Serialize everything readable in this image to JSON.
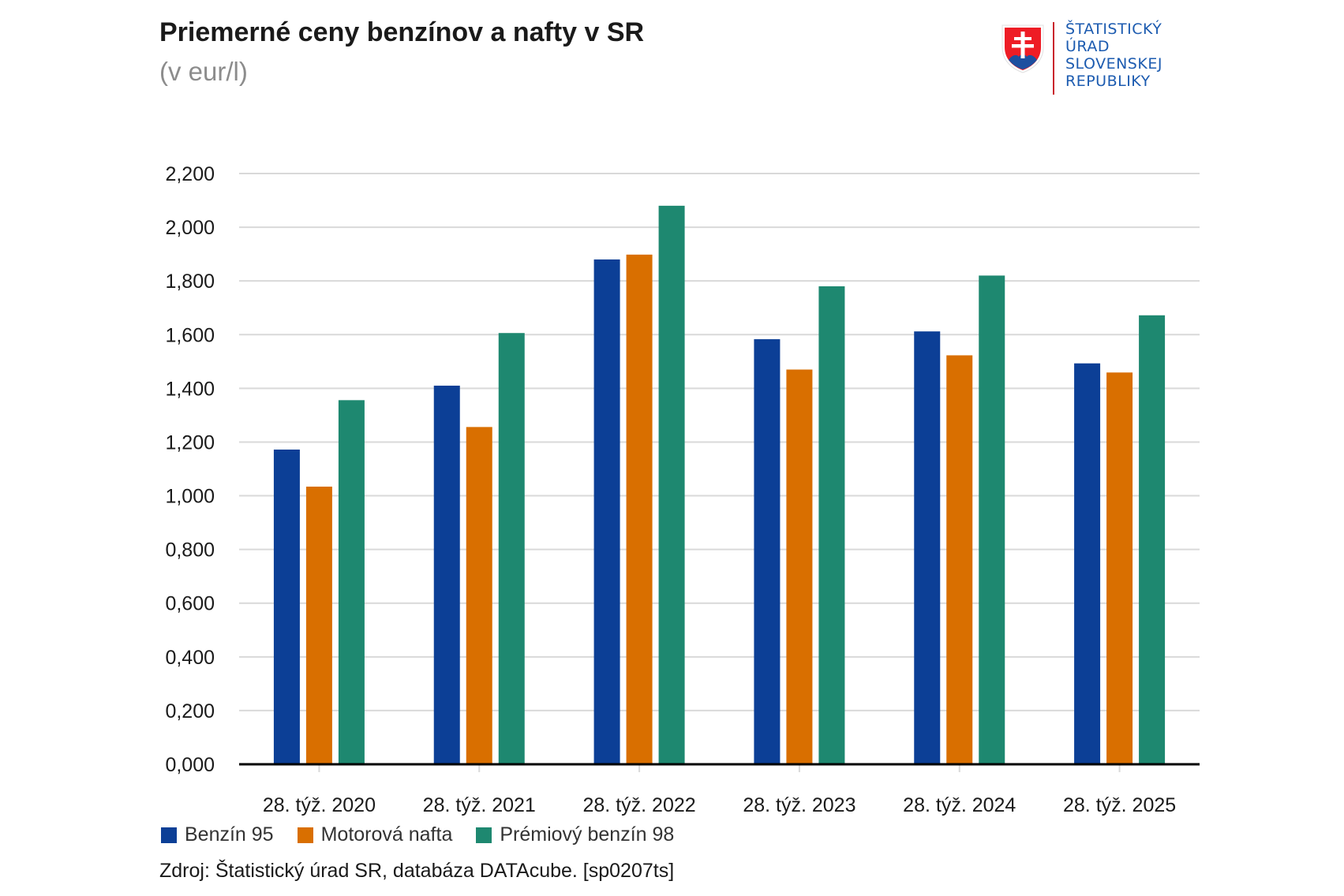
{
  "header": {
    "title": "Priemerné ceny benzínov a nafty v SR",
    "subtitle": "(v eur/l)"
  },
  "logo": {
    "lines": [
      "ŠTATISTICKÝ",
      "ÚRAD",
      "SLOVENSKEJ",
      "REPUBLIKY"
    ],
    "icon": "slovak-coat-of-arms-icon"
  },
  "source": "Zdroj: Štatistický úrad SR, databáza DATAcube. [sp0207ts]",
  "chart_data": {
    "type": "bar",
    "title": "Priemerné ceny benzínov a nafty v SR",
    "subtitle": "(v eur/l)",
    "xlabel": "",
    "ylabel": "",
    "ylim": [
      0,
      2.2
    ],
    "yticks": [
      "0,000",
      "0,200",
      "0,400",
      "0,600",
      "0,800",
      "1,000",
      "1,200",
      "1,400",
      "1,600",
      "1,800",
      "2,000",
      "2,200"
    ],
    "ytick_values": [
      0,
      0.2,
      0.4,
      0.6,
      0.8,
      1.0,
      1.2,
      1.4,
      1.6,
      1.8,
      2.0,
      2.2
    ],
    "grid": true,
    "legend_position": "bottom-left",
    "categories": [
      "28. týž. 2020",
      "28. týž. 2021",
      "28. týž. 2022",
      "28. týž. 2023",
      "28. týž. 2024",
      "28. týž. 2025"
    ],
    "series": [
      {
        "name": "Benzín 95",
        "color": "#0c3f96",
        "values": [
          1.172,
          1.41,
          1.88,
          1.583,
          1.612,
          1.493
        ]
      },
      {
        "name": "Motorová nafta",
        "color": "#d96f00",
        "values": [
          1.034,
          1.256,
          1.898,
          1.47,
          1.523,
          1.459
        ]
      },
      {
        "name": "Prémiový benzín 98",
        "color": "#1e8870",
        "values": [
          1.356,
          1.606,
          2.08,
          1.78,
          1.82,
          1.672
        ]
      }
    ]
  }
}
